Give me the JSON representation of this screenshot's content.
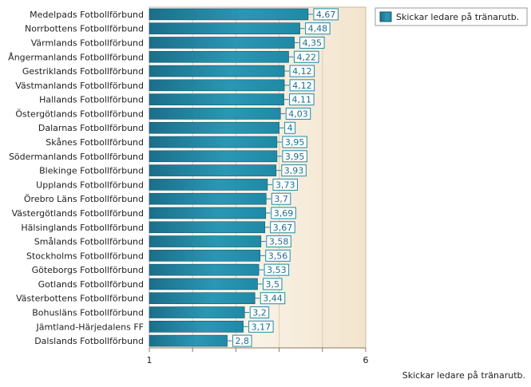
{
  "chart_data": {
    "type": "bar",
    "orientation": "horizontal",
    "categories": [
      "Medelpads Fotbollförbund",
      "Norrbottens Fotbollförbund",
      "Värmlands Fotbollförbund",
      "Ångermanlands Fotbollförbund",
      "Gestriklands Fotbollförbund",
      "Västmanlands Fotbollförbund",
      "Hallands Fotbollförbund",
      "Östergötlands Fotbollförbund",
      "Dalarnas Fotbollförbund",
      "Skånes Fotbollförbund",
      "Södermanlands Fotbollförbund",
      "Blekinge Fotbollförbund",
      "Upplands Fotbollförbund",
      "Örebro Läns Fotbollförbund",
      "Västergötlands Fotbollförbund",
      "Hälsinglands Fotbollförbund",
      "Smålands Fotbollförbund",
      "Stockholms Fotbollförbund",
      "Göteborgs Fotbollförbund",
      "Gotlands Fotbollförbund",
      "Västerbottens Fotbollförbund",
      "Bohusläns Fotbollförbund",
      "Jämtland-Härjedalens FF",
      "Dalslands Fotbollförbund"
    ],
    "series": [
      {
        "name": "Skickar ledare på tränarutb.",
        "values": [
          4.67,
          4.48,
          4.35,
          4.22,
          4.12,
          4.12,
          4.11,
          4.03,
          4,
          3.95,
          3.95,
          3.93,
          3.73,
          3.7,
          3.69,
          3.67,
          3.58,
          3.56,
          3.53,
          3.5,
          3.44,
          3.2,
          3.17,
          2.8
        ],
        "value_labels": [
          "4,67",
          "4,48",
          "4,35",
          "4,22",
          "4,12",
          "4,12",
          "4,11",
          "4,03",
          "4",
          "3,95",
          "3,95",
          "3,93",
          "3,73",
          "3,7",
          "3,69",
          "3,67",
          "3,58",
          "3,56",
          "3,53",
          "3,5",
          "3,44",
          "3,2",
          "3,17",
          "2,8"
        ],
        "color": "#1f8aa6"
      }
    ],
    "xlim": [
      1,
      6
    ],
    "x_tick_labels": [
      "1",
      "6"
    ],
    "xlabel": "Skickar ledare på tränarutb.",
    "legend_position": "top-right",
    "grid": true,
    "plot_background": "#f7ecd9",
    "value_label_border": "#1f8aa6"
  }
}
